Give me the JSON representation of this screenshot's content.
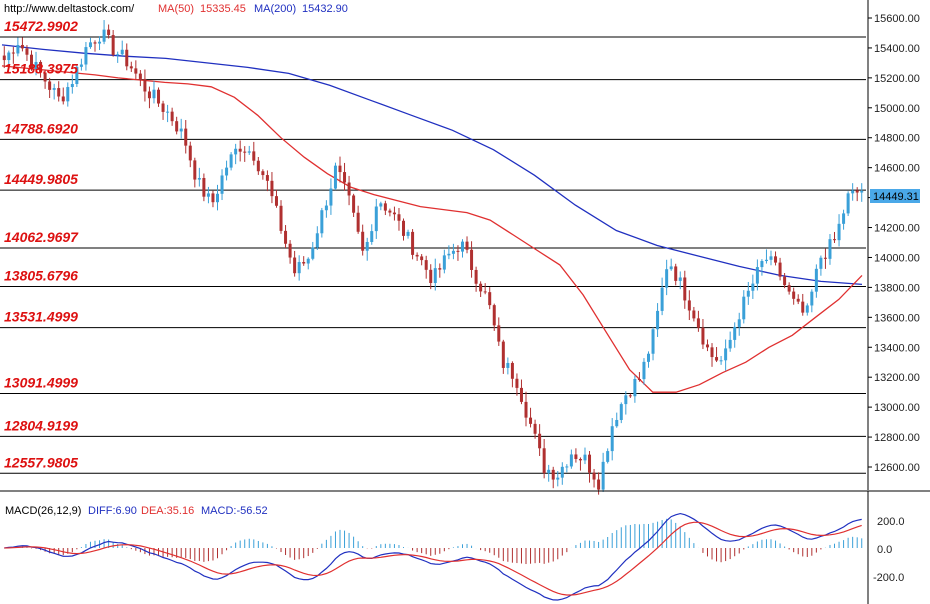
{
  "colors": {
    "up": "#3aa0d8",
    "down": "#b03030",
    "ma50": "#e03030",
    "ma200": "#2030c0",
    "levels": "#000000",
    "level_labels": "#dd1111",
    "diff": "#2030c0",
    "dea": "#e03030"
  },
  "header": {
    "url": "http://www.deltastock.com/",
    "ma50_label": "MA(50)",
    "ma50_value": "15335.45",
    "ma200_label": "MA(200)",
    "ma200_value": "15432.90"
  },
  "price_axis": {
    "ticks": [
      "15600.00",
      "15400.00",
      "15200.00",
      "15000.00",
      "14800.00",
      "14600.00",
      "14400.00",
      "14200.00",
      "14000.00",
      "13800.00",
      "13600.00",
      "13400.00",
      "13200.00",
      "13000.00",
      "12800.00",
      "12600.00"
    ],
    "current": "14449.31"
  },
  "macd": {
    "label": "MACD(26,12,9)",
    "diff_label": "DIFF:6.90",
    "dea_label": "DEA:35.16",
    "macd_label": "MACD:-56.52",
    "ticks": [
      "200.0",
      "0.0",
      "-200.0"
    ]
  },
  "chart_data": {
    "type": "candlestick",
    "ylim": [
      12460,
      15700
    ],
    "levels": [
      {
        "label": "15472.9902",
        "value": 15472.9902
      },
      {
        "label": "15188.3975",
        "value": 15188.3975
      },
      {
        "label": "14788.6920",
        "value": 14788.692
      },
      {
        "label": "14449.9805",
        "value": 14449.9805
      },
      {
        "label": "14062.9697",
        "value": 14062.9697
      },
      {
        "label": "13805.6796",
        "value": 13805.6796
      },
      {
        "label": "13531.4999",
        "value": 13531.4999
      },
      {
        "label": "13091.4999",
        "value": 13091.4999
      },
      {
        "label": "12804.9199",
        "value": 12804.9199
      },
      {
        "label": "12557.9805",
        "value": 12557.9805
      }
    ],
    "price_path": [
      15320,
      15450,
      15300,
      15180,
      15050,
      15200,
      15420,
      15500,
      15380,
      15300,
      15150,
      15050,
      14950,
      14800,
      14500,
      14350,
      14600,
      14750,
      14700,
      14500,
      14200,
      13900,
      14000,
      14300,
      14600,
      14350,
      14000,
      14400,
      14300,
      14150,
      14000,
      13850,
      14000,
      14100,
      13900,
      13700,
      13300,
      13200,
      12900,
      12600,
      12550,
      12700,
      12650,
      12500,
      12900,
      13100,
      13200,
      13500,
      14000,
      13800,
      13600,
      13350,
      13300,
      13600,
      13800,
      14000,
      13900,
      13700,
      13600,
      14000,
      14100,
      14400,
      14450
    ],
    "ma50": [
      15280,
      15265,
      15250,
      15235,
      15220,
      15200,
      15185,
      15170,
      15160,
      15140,
      15070,
      14950,
      14800,
      14670,
      14560,
      14470,
      14420,
      14380,
      14340,
      14320,
      14300,
      14250,
      14150,
      14050,
      13950,
      13750,
      13500,
      13250,
      13100,
      13100,
      13150,
      13230,
      13300,
      13400,
      13480,
      13600,
      13720,
      13880
    ],
    "ma200": [
      15420,
      15390,
      15365,
      15345,
      15330,
      15300,
      15270,
      15230,
      15150,
      15050,
      14950,
      14850,
      14720,
      14550,
      14350,
      14180,
      14080,
      14010,
      13940,
      13880,
      13840,
      13820
    ]
  }
}
